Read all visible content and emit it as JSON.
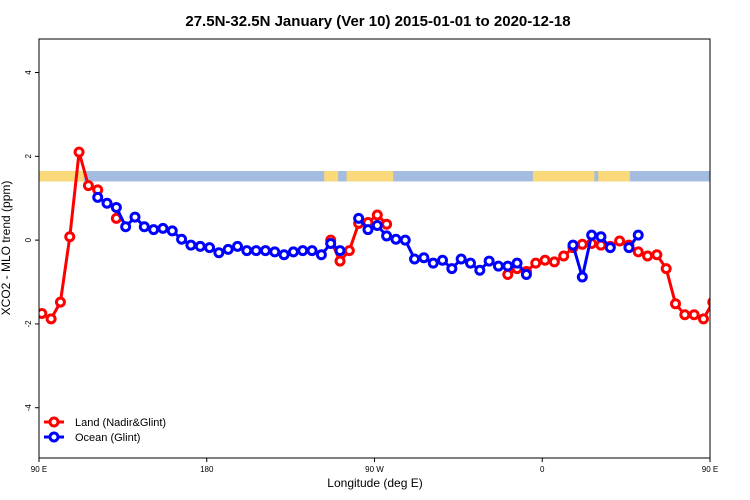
{
  "chart_data": {
    "type": "line",
    "title": "27.5N-32.5N January (Ver 10)   2015-01-01 to 2020-12-18",
    "xlabel": "Longitude (deg E)",
    "ylabel": "XCO2 - MLO trend (ppm)",
    "xlim": [
      90,
      450
    ],
    "ylim": [
      -5.2,
      4.8
    ],
    "x_ticks": [
      {
        "value": 90,
        "label": "90 E"
      },
      {
        "value": 180,
        "label": "180"
      },
      {
        "value": 270,
        "label": "90 W"
      },
      {
        "value": 360,
        "label": "0"
      },
      {
        "value": 450,
        "label": "90 E"
      },
      {
        "value": 540,
        "label": "180"
      }
    ],
    "y_ticks": [
      {
        "value": -4,
        "label": "-4"
      },
      {
        "value": -2,
        "label": "-2"
      },
      {
        "value": 0,
        "label": "0"
      },
      {
        "value": 2,
        "label": "2"
      },
      {
        "value": 4,
        "label": "4"
      }
    ],
    "grid": false,
    "legend": {
      "position": "bottom-left"
    },
    "series": [
      {
        "name": "Land (Nadir&Glint)",
        "color": "#ff0000",
        "segments": [
          {
            "x": [
              91.5,
              96.5,
              101.5,
              106.5,
              111.5,
              116.5,
              121.5
            ],
            "y": [
              -1.75,
              -1.88,
              -1.48,
              0.08,
              2.1,
              1.3,
              1.2
            ]
          },
          {
            "x": [
              131.5
            ],
            "y": [
              0.52
            ]
          },
          {
            "x": [
              246.5,
              251.5,
              256.5,
              261.5,
              266.5,
              271.5,
              276.5
            ],
            "y": [
              0.0,
              -0.5,
              -0.25,
              0.4,
              0.42,
              0.6,
              0.38
            ]
          },
          {
            "x": [
              341.5,
              346.5,
              351.5,
              356.5,
              361.5,
              366.5,
              371.5,
              376.5,
              381.5,
              386.5,
              391.5,
              396.5,
              401.5,
              406.5,
              411.5,
              416.5,
              421.5,
              426.5,
              431.5,
              436.5,
              441.5,
              446.5,
              451.5,
              456.5,
              461.5
            ],
            "y": [
              -0.82,
              -0.68,
              -0.75,
              -0.55,
              -0.48,
              -0.52,
              -0.38,
              -0.18,
              -0.1,
              -0.08,
              -0.12,
              -0.15,
              -0.02,
              -0.12,
              -0.28,
              -0.38,
              -0.35,
              -0.68,
              -1.52,
              -1.78,
              -1.78,
              -1.88,
              -1.48,
              0.08,
              2.1
            ]
          },
          {
            "x": [
              466.5,
              471.5
            ],
            "y": [
              1.3,
              1.2
            ]
          },
          {
            "x": [
              481.5
            ],
            "y": [
              0.52
            ]
          }
        ]
      },
      {
        "name": "Ocean (Glint)",
        "color": "#0000ff",
        "segments": [
          {
            "x": [
              121.5,
              126.5,
              131.5,
              136.5,
              141.5,
              146.5,
              151.5,
              156.5,
              161.5,
              166.5,
              171.5,
              176.5,
              181.5,
              186.5,
              191.5,
              196.5,
              201.5,
              206.5,
              211.5,
              216.5,
              221.5,
              226.5,
              231.5,
              236.5,
              241.5,
              246.5,
              251.5
            ],
            "y": [
              1.02,
              0.88,
              0.78,
              0.32,
              0.55,
              0.32,
              0.25,
              0.28,
              0.22,
              0.02,
              -0.12,
              -0.15,
              -0.18,
              -0.3,
              -0.22,
              -0.15,
              -0.25,
              -0.25,
              -0.25,
              -0.28,
              -0.35,
              -0.28,
              -0.25,
              -0.25,
              -0.35,
              -0.08,
              -0.25
            ]
          },
          {
            "x": [
              261.5,
              266.5,
              271.5,
              276.5,
              281.5,
              286.5,
              291.5,
              296.5,
              301.5,
              306.5,
              311.5,
              316.5,
              321.5,
              326.5,
              331.5,
              336.5,
              341.5,
              346.5,
              351.5
            ],
            "y": [
              0.52,
              0.25,
              0.35,
              0.1,
              0.02,
              0.0,
              -0.45,
              -0.42,
              -0.55,
              -0.48,
              -0.68,
              -0.45,
              -0.55,
              -0.72,
              -0.5,
              -0.62,
              -0.62,
              -0.55,
              -0.82
            ]
          },
          {
            "x": [
              376.5,
              381.5,
              386.5,
              391.5,
              396.5
            ],
            "y": [
              -0.12,
              -0.88,
              0.12,
              0.08,
              -0.18
            ]
          },
          {
            "x": [
              406.5,
              411.5
            ],
            "y": [
              -0.18,
              0.12
            ]
          },
          {
            "x": [
              471.5,
              476.5,
              481.5,
              486.5,
              491.5,
              496.5,
              501.5,
              506.5,
              511.5,
              516.5,
              521.5,
              526.5,
              531.5
            ],
            "y": [
              1.02,
              0.88,
              0.78,
              0.32,
              0.55,
              0.32,
              0.25,
              0.28,
              0.22,
              0.02,
              -0.12,
              -0.15,
              -0.18
            ]
          }
        ]
      }
    ],
    "land_mask_band": {
      "y_top": 1.65,
      "y_bottom": 1.4,
      "ocean_color": "#a3bce0",
      "land_color": "#fad97a",
      "land_ranges": [
        [
          90,
          114
        ],
        [
          243,
          250.5
        ],
        [
          255,
          280
        ],
        [
          355,
          388
        ],
        [
          390,
          407
        ],
        [
          452,
          474
        ],
        [
          542,
          560
        ]
      ]
    }
  }
}
